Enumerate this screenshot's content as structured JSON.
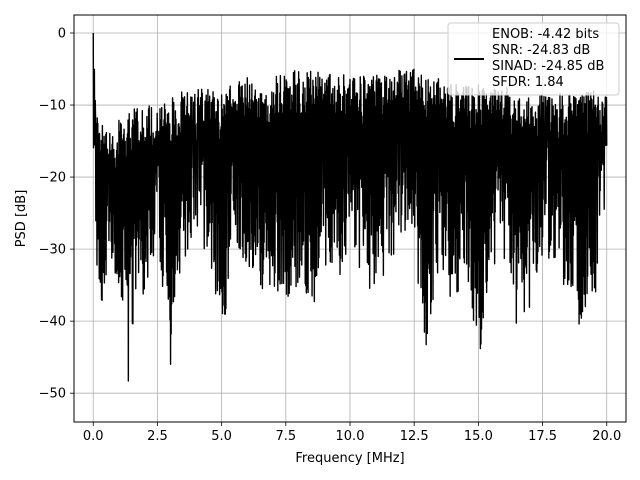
{
  "chart_data": {
    "type": "line",
    "xlabel": "Frequency [MHz]",
    "ylabel": "PSD [dB]",
    "xlim": [
      -0.75,
      20.75
    ],
    "ylim": [
      -54,
      2.5
    ],
    "xticks": [
      0.0,
      2.5,
      5.0,
      7.5,
      10.0,
      12.5,
      15.0,
      17.5,
      20.0
    ],
    "xtick_labels": [
      "0.0",
      "2.5",
      "5.0",
      "7.5",
      "10.0",
      "12.5",
      "15.0",
      "17.5",
      "20.0"
    ],
    "yticks": [
      0,
      -10,
      -20,
      -30,
      -40,
      -50
    ],
    "ytick_labels": [
      "0",
      "−10",
      "−20",
      "−30",
      "−40",
      "−50"
    ],
    "grid": true,
    "legend": {
      "placement": "top-right",
      "entries": [
        "ENOB: -4.42 bits",
        "SNR: -24.83 dB",
        "SINAD: -24.85 dB",
        "SFDR: 1.84"
      ]
    },
    "series": [
      {
        "color": "#000000",
        "x": [
          0.0,
          0.05,
          0.1,
          0.2,
          0.3,
          0.4,
          0.6,
          0.8,
          1.0,
          1.2,
          1.4,
          1.6,
          1.8,
          2.0,
          2.5,
          3.0,
          3.5,
          4.0,
          4.5,
          5.0,
          5.5,
          6.0,
          6.5,
          7.0,
          7.5,
          8.0,
          8.5,
          9.0,
          9.5,
          10.0,
          10.5,
          11.0,
          11.5,
          12.0,
          12.5,
          13.0,
          13.5,
          14.0,
          14.5,
          15.0,
          15.5,
          16.0,
          16.5,
          17.0,
          17.5,
          18.0,
          18.5,
          19.0,
          19.5,
          20.0
        ],
        "y_upper": [
          0.0,
          -4,
          -8,
          -12,
          -13,
          -12,
          -13,
          -12,
          -12,
          -12,
          -11,
          -10,
          -10,
          -10,
          -10,
          -9,
          -8,
          -8,
          -7,
          -8,
          -7,
          -6,
          -7,
          -6,
          -5,
          -5,
          -5,
          -5,
          -6,
          -5,
          -6,
          -5,
          -5,
          -5,
          -5,
          -6,
          -6,
          -7,
          -7,
          -7,
          -8,
          -7,
          -8,
          -8,
          -8,
          -8,
          -8,
          -8,
          -8,
          -9
        ],
        "y_lower": [
          -15,
          -20,
          -30,
          -35,
          -42,
          -35,
          -35,
          -33,
          -40,
          -36,
          -51,
          -38,
          -35,
          -37,
          -30,
          -47,
          -32,
          -30,
          -31,
          -43,
          -30,
          -32,
          -36,
          -36,
          -37,
          -35,
          -40,
          -32,
          -37,
          -29,
          -34,
          -37,
          -33,
          -28,
          -31,
          -45,
          -31,
          -40,
          -32,
          -46,
          -32,
          -34,
          -41,
          -38,
          -31,
          -33,
          -36,
          -42,
          -39,
          -22
        ]
      }
    ]
  }
}
